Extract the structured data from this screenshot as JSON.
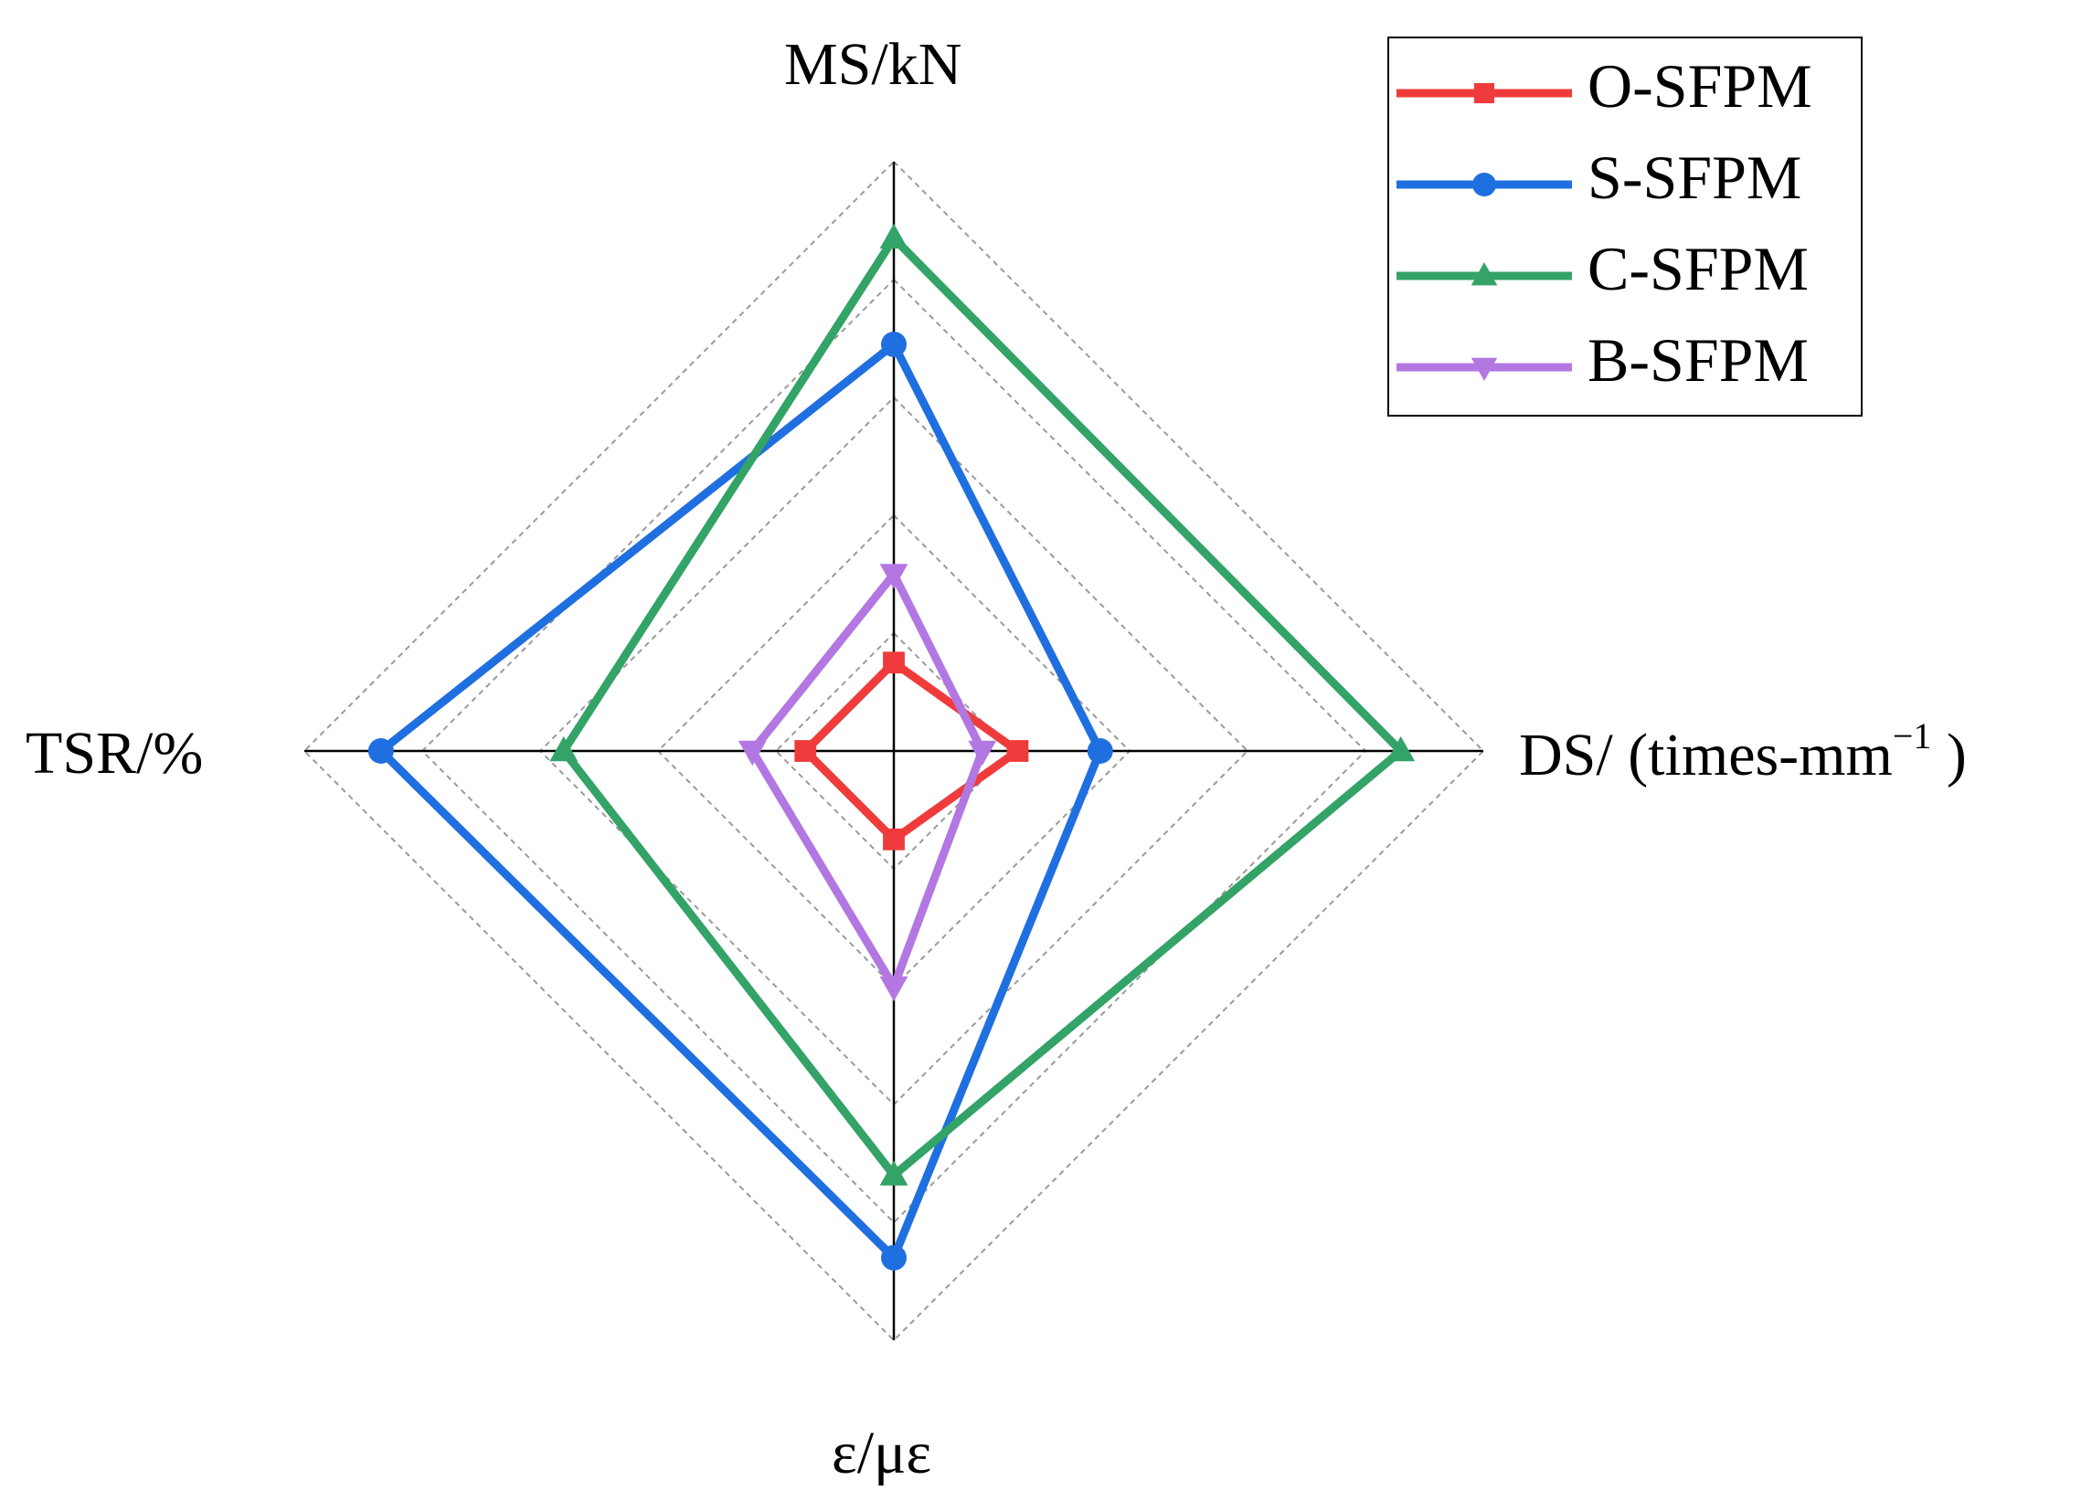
{
  "chart_data": {
    "type": "radar",
    "axes": [
      {
        "key": "MS",
        "label": "MS/kN"
      },
      {
        "key": "DS",
        "label_main": "DS/ (times-mm",
        "label_sup": "−1",
        "label_end": " )"
      },
      {
        "key": "eps",
        "label": "ε/με"
      },
      {
        "key": "TSR",
        "label": "TSR/%"
      }
    ],
    "scale_max": 1.0,
    "rings": [
      0.2,
      0.4,
      0.6,
      0.8,
      1.0
    ],
    "grid": true,
    "legend_position": "top-right",
    "series": [
      {
        "name": "O-SFPM",
        "color": "#ef3b3b",
        "marker": "square",
        "values": [
          0.15,
          0.21,
          0.15,
          0.15
        ]
      },
      {
        "name": "S-SFPM",
        "color": "#1f6fe0",
        "marker": "circle",
        "values": [
          0.69,
          0.35,
          0.86,
          0.87
        ]
      },
      {
        "name": "C-SFPM",
        "color": "#33a367",
        "marker": "triangle-up",
        "values": [
          0.87,
          0.86,
          0.72,
          0.56
        ]
      },
      {
        "name": "B-SFPM",
        "color": "#b377e2",
        "marker": "triangle-down",
        "values": [
          0.3,
          0.15,
          0.4,
          0.24
        ]
      }
    ]
  }
}
